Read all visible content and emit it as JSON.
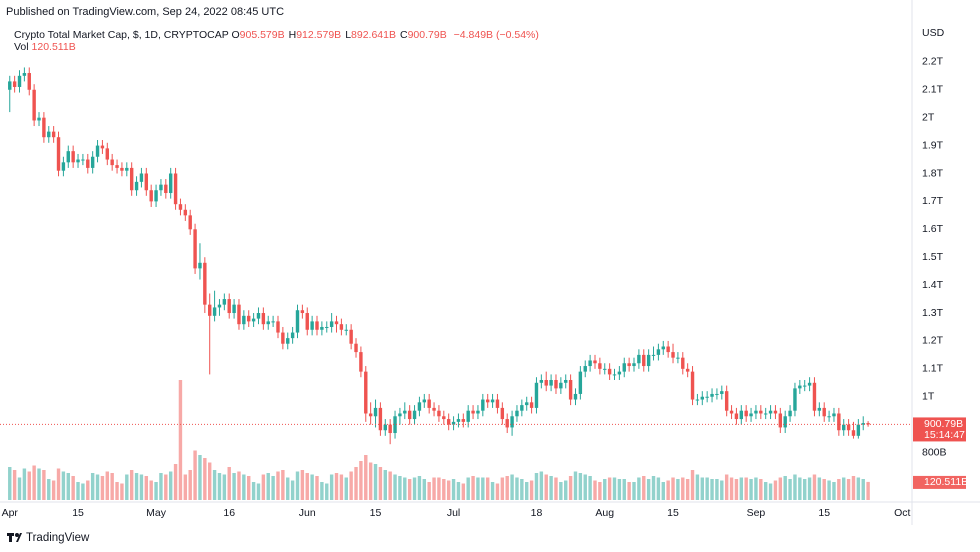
{
  "chart_data": {
    "type": "candlestick",
    "published": "Published on TradingView.com, Sep 24, 2022 08:45 UTC",
    "title": "Crypto Total Market Cap, $, 1D, CRYPTOCAP",
    "ohlc": [
      {
        "key": "O",
        "value": "905.579B"
      },
      {
        "key": "H",
        "value": "912.579B"
      },
      {
        "key": "L",
        "value": "892.641B"
      },
      {
        "key": "C",
        "value": "900.79B"
      }
    ],
    "change": "−4.849B (−0.54%)",
    "currency": "USD",
    "price_tag": "900.79B",
    "countdown": "15:14:47",
    "volume_tag": "120.511B",
    "brand": "TradingView",
    "up_color": "#26a69a",
    "down_color": "#ef5350",
    "grid": false,
    "xlim": [
      "2022-03-30",
      "2022-10-03"
    ],
    "xticks": [
      {
        "value": "2022-04-01",
        "label": "Apr"
      },
      {
        "value": "2022-04-15",
        "label": "15"
      },
      {
        "value": "2022-05-01",
        "label": "May"
      },
      {
        "value": "2022-05-16",
        "label": "16"
      },
      {
        "value": "2022-06-01",
        "label": "Jun"
      },
      {
        "value": "2022-06-15",
        "label": "15"
      },
      {
        "value": "2022-07-01",
        "label": "Jul"
      },
      {
        "value": "2022-07-18",
        "label": "18"
      },
      {
        "value": "2022-08-01",
        "label": "Aug"
      },
      {
        "value": "2022-08-15",
        "label": "15"
      },
      {
        "value": "2022-09-01",
        "label": "Sep"
      },
      {
        "value": "2022-09-15",
        "label": "15"
      },
      {
        "value": "2022-10-01",
        "label": "Oct"
      }
    ],
    "ylim": [
      630,
      2350
    ],
    "yticks": [
      {
        "value": 800,
        "label": "800B"
      },
      {
        "value": 1000,
        "label": "1T"
      },
      {
        "value": 1100,
        "label": "1.1T"
      },
      {
        "value": 1200,
        "label": "1.2T"
      },
      {
        "value": 1300,
        "label": "1.3T"
      },
      {
        "value": 1400,
        "label": "1.4T"
      },
      {
        "value": 1500,
        "label": "1.5T"
      },
      {
        "value": 1600,
        "label": "1.6T"
      },
      {
        "value": 1700,
        "label": "1.7T"
      },
      {
        "value": 1800,
        "label": "1.8T"
      },
      {
        "value": 1900,
        "label": "1.9T"
      },
      {
        "value": 2000,
        "label": "2T"
      },
      {
        "value": 2100,
        "label": "2.1T"
      },
      {
        "value": 2200,
        "label": "2.2T"
      }
    ],
    "y2lim": [
      0,
      3200
    ],
    "x": [
      "2022-04-01",
      "2022-04-02",
      "2022-04-03",
      "2022-04-04",
      "2022-04-05",
      "2022-04-06",
      "2022-04-07",
      "2022-04-08",
      "2022-04-09",
      "2022-04-10",
      "2022-04-11",
      "2022-04-12",
      "2022-04-13",
      "2022-04-14",
      "2022-04-15",
      "2022-04-16",
      "2022-04-17",
      "2022-04-18",
      "2022-04-19",
      "2022-04-20",
      "2022-04-21",
      "2022-04-22",
      "2022-04-23",
      "2022-04-24",
      "2022-04-25",
      "2022-04-26",
      "2022-04-27",
      "2022-04-28",
      "2022-04-29",
      "2022-04-30",
      "2022-05-01",
      "2022-05-02",
      "2022-05-03",
      "2022-05-04",
      "2022-05-05",
      "2022-05-06",
      "2022-05-07",
      "2022-05-08",
      "2022-05-09",
      "2022-05-10",
      "2022-05-11",
      "2022-05-12",
      "2022-05-13",
      "2022-05-14",
      "2022-05-15",
      "2022-05-16",
      "2022-05-17",
      "2022-05-18",
      "2022-05-19",
      "2022-05-20",
      "2022-05-21",
      "2022-05-22",
      "2022-05-23",
      "2022-05-24",
      "2022-05-25",
      "2022-05-26",
      "2022-05-27",
      "2022-05-28",
      "2022-05-29",
      "2022-05-30",
      "2022-05-31",
      "2022-06-01",
      "2022-06-02",
      "2022-06-03",
      "2022-06-04",
      "2022-06-05",
      "2022-06-06",
      "2022-06-07",
      "2022-06-08",
      "2022-06-09",
      "2022-06-10",
      "2022-06-11",
      "2022-06-12",
      "2022-06-13",
      "2022-06-14",
      "2022-06-15",
      "2022-06-16",
      "2022-06-17",
      "2022-06-18",
      "2022-06-19",
      "2022-06-20",
      "2022-06-21",
      "2022-06-22",
      "2022-06-23",
      "2022-06-24",
      "2022-06-25",
      "2022-06-26",
      "2022-06-27",
      "2022-06-28",
      "2022-06-29",
      "2022-06-30",
      "2022-07-01",
      "2022-07-02",
      "2022-07-03",
      "2022-07-04",
      "2022-07-05",
      "2022-07-06",
      "2022-07-07",
      "2022-07-08",
      "2022-07-09",
      "2022-07-10",
      "2022-07-11",
      "2022-07-12",
      "2022-07-13",
      "2022-07-14",
      "2022-07-15",
      "2022-07-16",
      "2022-07-17",
      "2022-07-18",
      "2022-07-19",
      "2022-07-20",
      "2022-07-21",
      "2022-07-22",
      "2022-07-23",
      "2022-07-24",
      "2022-07-25",
      "2022-07-26",
      "2022-07-27",
      "2022-07-28",
      "2022-07-29",
      "2022-07-30",
      "2022-07-31",
      "2022-08-01",
      "2022-08-02",
      "2022-08-03",
      "2022-08-04",
      "2022-08-05",
      "2022-08-06",
      "2022-08-07",
      "2022-08-08",
      "2022-08-09",
      "2022-08-10",
      "2022-08-11",
      "2022-08-12",
      "2022-08-13",
      "2022-08-14",
      "2022-08-15",
      "2022-08-16",
      "2022-08-17",
      "2022-08-18",
      "2022-08-19",
      "2022-08-20",
      "2022-08-21",
      "2022-08-22",
      "2022-08-23",
      "2022-08-24",
      "2022-08-25",
      "2022-08-26",
      "2022-08-27",
      "2022-08-28",
      "2022-08-29",
      "2022-08-30",
      "2022-08-31",
      "2022-09-01",
      "2022-09-02",
      "2022-09-03",
      "2022-09-04",
      "2022-09-05",
      "2022-09-06",
      "2022-09-07",
      "2022-09-08",
      "2022-09-09",
      "2022-09-10",
      "2022-09-11",
      "2022-09-12",
      "2022-09-13",
      "2022-09-14",
      "2022-09-15",
      "2022-09-16",
      "2022-09-17",
      "2022-09-18",
      "2022-09-19",
      "2022-09-20",
      "2022-09-21",
      "2022-09-22",
      "2022-09-23",
      "2022-09-24"
    ],
    "open": [
      2100,
      2130,
      2110,
      2150,
      2160,
      2100,
      1990,
      2000,
      1930,
      1950,
      1930,
      1810,
      1840,
      1880,
      1840,
      1850,
      1850,
      1820,
      1860,
      1900,
      1890,
      1850,
      1830,
      1820,
      1810,
      1820,
      1740,
      1770,
      1800,
      1740,
      1700,
      1740,
      1760,
      1730,
      1800,
      1690,
      1670,
      1650,
      1600,
      1460,
      1480,
      1330,
      1290,
      1320,
      1330,
      1350,
      1300,
      1330,
      1260,
      1290,
      1270,
      1280,
      1300,
      1260,
      1270,
      1270,
      1230,
      1190,
      1210,
      1230,
      1310,
      1300,
      1240,
      1270,
      1240,
      1250,
      1250,
      1270,
      1260,
      1240,
      1240,
      1190,
      1160,
      1090,
      940,
      930,
      960,
      880,
      900,
      870,
      930,
      940,
      950,
      920,
      950,
      980,
      990,
      960,
      950,
      930,
      920,
      900,
      910,
      920,
      910,
      950,
      940,
      950,
      990,
      980,
      990,
      960,
      920,
      890,
      930,
      950,
      970,
      980,
      960,
      1050,
      1060,
      1040,
      1060,
      1030,
      1050,
      1060,
      990,
      1010,
      1090,
      1110,
      1130,
      1120,
      1100,
      1100,
      1080,
      1080,
      1090,
      1120,
      1110,
      1120,
      1150,
      1110,
      1150,
      1150,
      1170,
      1180,
      1160,
      1140,
      1140,
      1100,
      1090,
      990,
      990,
      1000,
      1000,
      1010,
      1010,
      1020,
      950,
      940,
      920,
      950,
      930,
      940,
      950,
      940,
      940,
      950,
      940,
      890,
      930,
      950,
      1030,
      1040,
      1040,
      1050,
      950,
      960,
      930,
      930,
      940,
      880,
      900,
      880,
      860,
      900,
      905.579
    ],
    "high": [
      2150,
      2150,
      2170,
      2180,
      2180,
      2120,
      2020,
      2020,
      1970,
      1970,
      1950,
      1860,
      1900,
      1900,
      1870,
      1870,
      1870,
      1880,
      1920,
      1920,
      1910,
      1870,
      1850,
      1840,
      1840,
      1840,
      1790,
      1820,
      1820,
      1760,
      1760,
      1780,
      1780,
      1820,
      1820,
      1710,
      1690,
      1670,
      1620,
      1550,
      1500,
      1370,
      1380,
      1350,
      1370,
      1370,
      1350,
      1350,
      1310,
      1310,
      1300,
      1320,
      1320,
      1290,
      1290,
      1290,
      1250,
      1230,
      1250,
      1330,
      1330,
      1320,
      1290,
      1290,
      1270,
      1270,
      1300,
      1290,
      1280,
      1260,
      1260,
      1210,
      1180,
      1110,
      980,
      990,
      980,
      920,
      920,
      950,
      960,
      980,
      970,
      970,
      1000,
      1010,
      1010,
      980,
      970,
      950,
      940,
      930,
      940,
      940,
      970,
      970,
      970,
      1010,
      1010,
      1010,
      1010,
      980,
      940,
      950,
      970,
      990,
      1000,
      1000,
      1070,
      1080,
      1090,
      1080,
      1080,
      1070,
      1080,
      1080,
      1030,
      1110,
      1130,
      1150,
      1150,
      1140,
      1120,
      1120,
      1100,
      1110,
      1140,
      1140,
      1140,
      1170,
      1170,
      1170,
      1180,
      1190,
      1200,
      1200,
      1190,
      1160,
      1160,
      1120,
      1110,
      1010,
      1020,
      1020,
      1030,
      1030,
      1040,
      1040,
      970,
      960,
      970,
      970,
      960,
      970,
      970,
      960,
      970,
      970,
      960,
      950,
      970,
      1050,
      1060,
      1060,
      1070,
      1070,
      980,
      980,
      950,
      960,
      960,
      920,
      920,
      910,
      920,
      930,
      912.579
    ],
    "low": [
      2020,
      2090,
      2090,
      2130,
      2080,
      1970,
      1970,
      1910,
      1910,
      1910,
      1790,
      1790,
      1820,
      1820,
      1820,
      1830,
      1800,
      1800,
      1840,
      1870,
      1830,
      1810,
      1800,
      1790,
      1790,
      1720,
      1720,
      1750,
      1720,
      1680,
      1680,
      1720,
      1710,
      1710,
      1670,
      1650,
      1630,
      1580,
      1440,
      1420,
      1300,
      1080,
      1270,
      1290,
      1310,
      1280,
      1280,
      1240,
      1240,
      1250,
      1250,
      1260,
      1240,
      1240,
      1250,
      1210,
      1170,
      1170,
      1190,
      1210,
      1280,
      1220,
      1220,
      1220,
      1220,
      1230,
      1230,
      1230,
      1220,
      1220,
      1170,
      1140,
      1070,
      910,
      900,
      890,
      860,
      860,
      830,
      850,
      900,
      920,
      900,
      900,
      930,
      960,
      940,
      930,
      910,
      900,
      880,
      880,
      890,
      890,
      890,
      920,
      920,
      930,
      960,
      960,
      940,
      900,
      870,
      860,
      910,
      930,
      950,
      940,
      940,
      1030,
      1020,
      1020,
      1010,
      1010,
      1030,
      970,
      970,
      990,
      1070,
      1090,
      1100,
      1080,
      1080,
      1060,
      1060,
      1060,
      1070,
      1090,
      1090,
      1100,
      1090,
      1090,
      1130,
      1130,
      1150,
      1140,
      1120,
      1120,
      1080,
      1070,
      970,
      970,
      970,
      980,
      980,
      990,
      990,
      930,
      920,
      900,
      900,
      910,
      910,
      920,
      920,
      920,
      920,
      920,
      870,
      870,
      910,
      930,
      1010,
      1020,
      1020,
      930,
      930,
      910,
      910,
      910,
      860,
      860,
      860,
      850,
      850,
      880,
      892.641
    ],
    "close": [
      2130,
      2110,
      2150,
      2160,
      2100,
      1990,
      2000,
      1930,
      1950,
      1930,
      1810,
      1840,
      1880,
      1840,
      1850,
      1850,
      1820,
      1860,
      1900,
      1890,
      1850,
      1830,
      1820,
      1810,
      1820,
      1740,
      1770,
      1800,
      1740,
      1700,
      1740,
      1760,
      1730,
      1800,
      1690,
      1670,
      1650,
      1600,
      1460,
      1480,
      1330,
      1290,
      1320,
      1330,
      1350,
      1300,
      1330,
      1260,
      1290,
      1270,
      1280,
      1300,
      1260,
      1270,
      1270,
      1230,
      1190,
      1210,
      1230,
      1310,
      1300,
      1240,
      1270,
      1240,
      1250,
      1250,
      1270,
      1260,
      1240,
      1240,
      1190,
      1160,
      1090,
      940,
      930,
      960,
      880,
      900,
      870,
      930,
      940,
      950,
      920,
      950,
      980,
      990,
      960,
      950,
      930,
      920,
      900,
      910,
      920,
      910,
      950,
      940,
      950,
      990,
      980,
      990,
      960,
      920,
      890,
      930,
      950,
      970,
      980,
      960,
      1050,
      1060,
      1040,
      1060,
      1030,
      1050,
      1060,
      990,
      1010,
      1090,
      1110,
      1130,
      1120,
      1100,
      1100,
      1080,
      1080,
      1090,
      1120,
      1110,
      1120,
      1150,
      1110,
      1150,
      1150,
      1170,
      1180,
      1160,
      1140,
      1140,
      1100,
      1090,
      990,
      990,
      1000,
      1000,
      1010,
      1010,
      1020,
      950,
      940,
      920,
      950,
      930,
      940,
      950,
      940,
      940,
      950,
      940,
      890,
      930,
      950,
      1030,
      1040,
      1040,
      1050,
      950,
      960,
      930,
      930,
      940,
      880,
      900,
      880,
      860,
      900,
      905.639,
      900.79
    ],
    "volume": {
      "name": "Vol",
      "value_label": "120.511B",
      "values": [
        220,
        200,
        150,
        210,
        190,
        230,
        210,
        200,
        140,
        130,
        210,
        190,
        180,
        160,
        120,
        110,
        130,
        180,
        170,
        160,
        190,
        180,
        120,
        110,
        170,
        200,
        180,
        170,
        160,
        130,
        120,
        180,
        170,
        190,
        240,
        800,
        170,
        200,
        330,
        300,
        280,
        250,
        200,
        180,
        170,
        220,
        180,
        190,
        170,
        160,
        120,
        110,
        170,
        180,
        160,
        190,
        200,
        150,
        130,
        190,
        200,
        180,
        170,
        160,
        120,
        110,
        170,
        180,
        170,
        150,
        190,
        220,
        260,
        300,
        250,
        240,
        220,
        200,
        190,
        170,
        160,
        150,
        140,
        150,
        160,
        140,
        120,
        150,
        150,
        140,
        130,
        140,
        120,
        110,
        150,
        160,
        150,
        150,
        150,
        120,
        110,
        150,
        160,
        170,
        150,
        140,
        120,
        130,
        180,
        190,
        170,
        160,
        150,
        120,
        130,
        160,
        190,
        180,
        170,
        160,
        130,
        120,
        140,
        150,
        150,
        140,
        140,
        120,
        120,
        150,
        160,
        140,
        160,
        150,
        120,
        130,
        150,
        140,
        150,
        140,
        200,
        170,
        150,
        150,
        140,
        140,
        130,
        170,
        150,
        140,
        150,
        150,
        140,
        150,
        140,
        120,
        110,
        130,
        150,
        160,
        140,
        170,
        150,
        140,
        150,
        170,
        150,
        140,
        130,
        120,
        140,
        150,
        140,
        160,
        150,
        140,
        120.511
      ]
    }
  }
}
